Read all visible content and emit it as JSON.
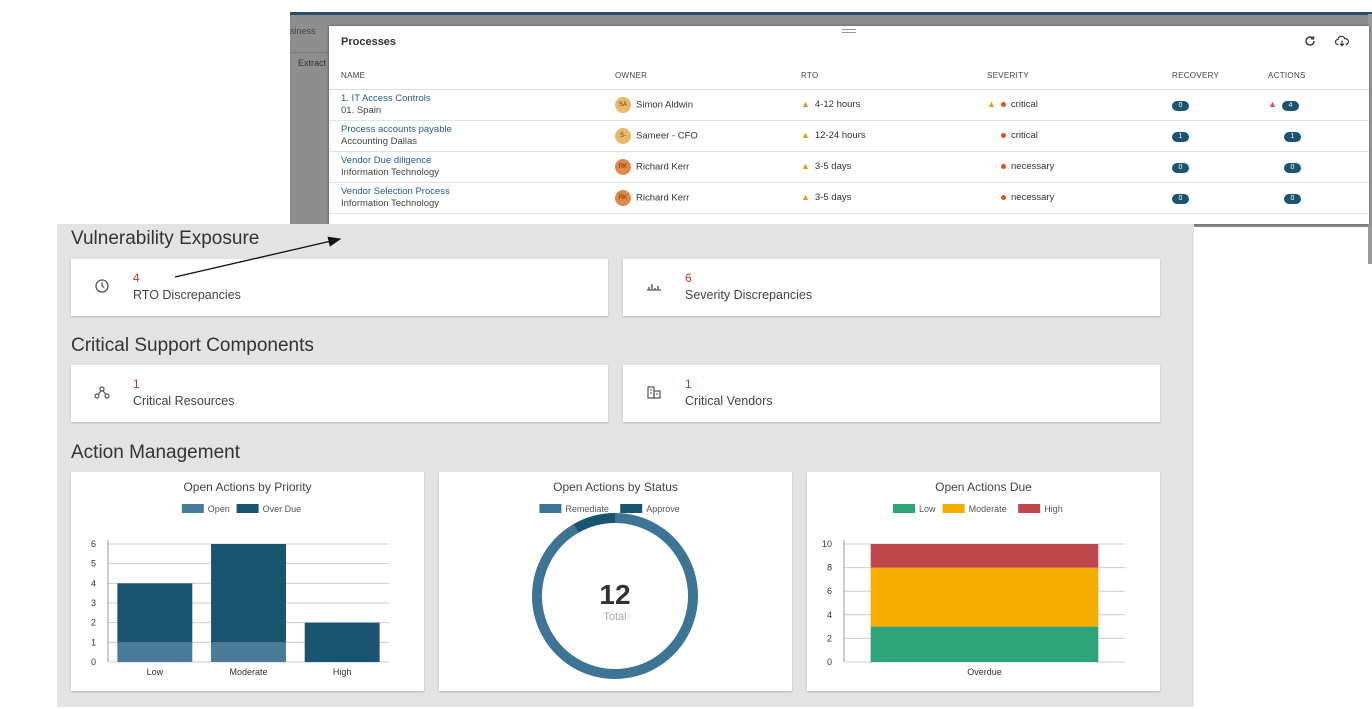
{
  "background": {
    "tab1": "siness",
    "tab2": "Extract"
  },
  "processes": {
    "title": "Processes",
    "refresh_icon": "refresh-icon",
    "download_icon": "cloud-download-icon",
    "columns": [
      "NAME",
      "OWNER",
      "RTO",
      "SEVERITY",
      "RECOVERY",
      "ACTIONS"
    ],
    "rows": [
      {
        "name": "1. IT Access Controls",
        "sub": "01. Spain",
        "initials": "SA",
        "owner": "Simon Aldwin",
        "rto": "4-12 hours",
        "sev_warn": true,
        "severity": "critical",
        "recovery": "0",
        "act_warn": true,
        "actions": "4",
        "avatar_color": "#e7b96b"
      },
      {
        "name": "Process accounts payable",
        "sub": "Accounting Dallas",
        "initials": "S-",
        "owner": "Sameer - CFO",
        "rto": "12-24 hours",
        "sev_warn": false,
        "severity": "critical",
        "recovery": "1",
        "act_warn": false,
        "actions": "1",
        "avatar_color": "#e7b96b"
      },
      {
        "name": "Vendor Due diligence",
        "sub": "Information Technology",
        "initials": "RK",
        "owner": "Richard Kerr",
        "rto": "3-5 days",
        "sev_warn": false,
        "severity": "necessary",
        "recovery": "0",
        "act_warn": false,
        "actions": "0",
        "avatar_color": "#e08a4a"
      },
      {
        "name": "Vendor Selection Process",
        "sub": "Information Technology",
        "initials": "RK",
        "owner": "Richard Kerr",
        "rto": "3-5 days",
        "sev_warn": false,
        "severity": "necessary",
        "recovery": "0",
        "act_warn": false,
        "actions": "0",
        "avatar_color": "#e08a4a"
      }
    ]
  },
  "dashboard": {
    "vuln_title": "Vulnerability Exposure",
    "critical_title": "Critical Support Components",
    "action_title": "Action Management",
    "cards": {
      "rto": {
        "icon": "clock-icon",
        "value": "4",
        "label": "RTO Discrepancies"
      },
      "severity": {
        "icon": "severity-icon",
        "value": "6",
        "label": "Severity Discrepancies"
      },
      "resources": {
        "icon": "network-icon",
        "value": "1",
        "label": "Critical Resources"
      },
      "vendors": {
        "icon": "building-icon",
        "value": "1",
        "label": "Critical Vendors"
      }
    }
  },
  "chart_data": [
    {
      "type": "bar",
      "title": "Open Actions by Priority",
      "stacked": true,
      "categories": [
        "Low",
        "Moderate",
        "High"
      ],
      "series": [
        {
          "name": "Open",
          "values": [
            1,
            1,
            0
          ],
          "color": "#4a7b99"
        },
        {
          "name": "Over Due",
          "values": [
            3,
            5,
            2
          ],
          "color": "#1b5470"
        }
      ],
      "ylim": [
        0,
        6
      ],
      "yticks": [
        0,
        1,
        2,
        3,
        4,
        5,
        6
      ],
      "legend": "top"
    },
    {
      "type": "pie",
      "title": "Open Actions by Status",
      "center_value": "12",
      "center_label": "Total",
      "series": [
        {
          "name": "Remediate",
          "value": 11,
          "color": "#3f7594"
        },
        {
          "name": "Approve",
          "value": 1,
          "color": "#1b5470"
        }
      ],
      "legend": "top"
    },
    {
      "type": "bar",
      "title": "Open Actions Due",
      "stacked": true,
      "categories": [
        "Overdue"
      ],
      "series": [
        {
          "name": "Low",
          "values": [
            3
          ],
          "color": "#2fa37a"
        },
        {
          "name": "Moderate",
          "values": [
            5
          ],
          "color": "#f5ad00"
        },
        {
          "name": "High",
          "values": [
            2
          ],
          "color": "#c0474d"
        }
      ],
      "ylim": [
        0,
        10
      ],
      "yticks": [
        0,
        2,
        4,
        6,
        8,
        10
      ],
      "legend": "top"
    }
  ]
}
